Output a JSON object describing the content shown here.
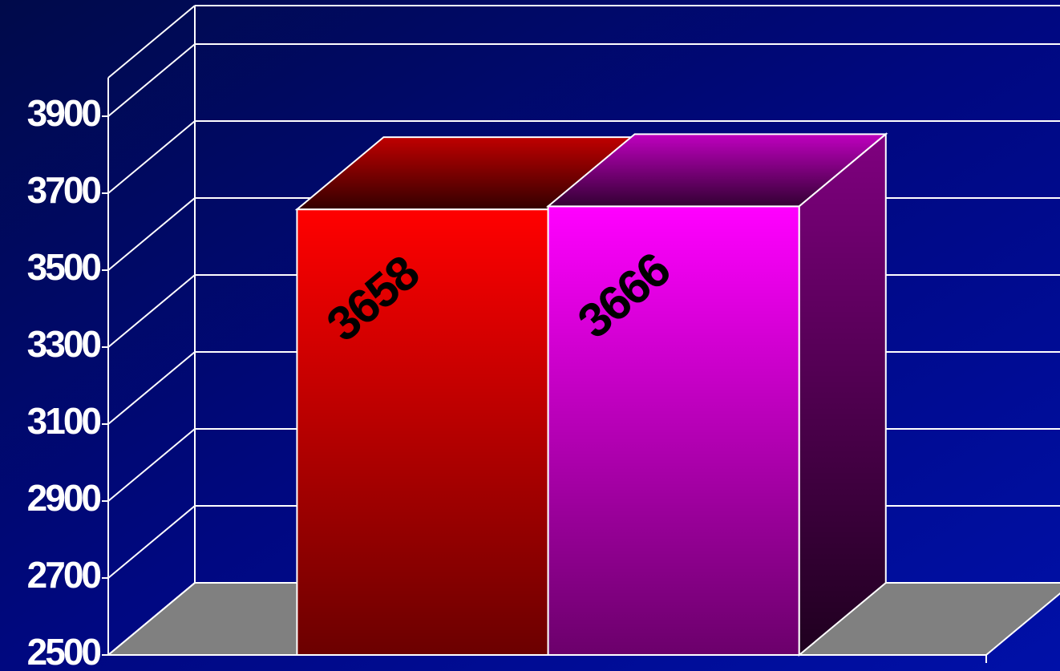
{
  "chart_data": {
    "type": "bar3d",
    "categories": [
      null
    ],
    "series": [
      {
        "color": "#ff0000",
        "values": [
          3658
        ]
      },
      {
        "color": "#ff00ff",
        "values": [
          3666
        ]
      }
    ],
    "ylim": [
      2500,
      4000
    ],
    "yticks": [
      2500,
      2700,
      2900,
      3100,
      3300,
      3500,
      3700,
      3900
    ],
    "grid": true
  }
}
